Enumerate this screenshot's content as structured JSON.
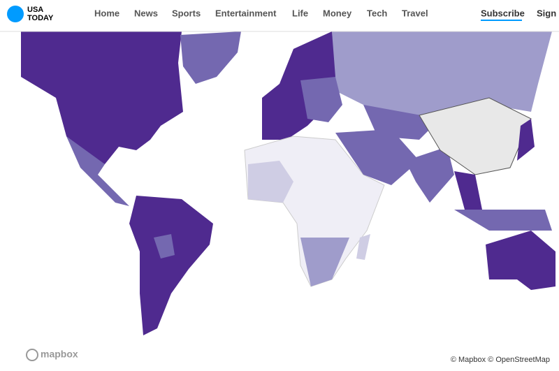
{
  "header": {
    "logo": [
      "USA",
      "TODAY"
    ],
    "nav": [
      "Home",
      "News",
      "Sports",
      "Entertainment",
      "Life",
      "Money",
      "Tech",
      "Travel"
    ],
    "subscribe": "Subscribe",
    "sign_in": "Sign In"
  },
  "map": {
    "logo": "mapbox",
    "attribution": "© Mapbox © OpenStreetMap"
  }
}
